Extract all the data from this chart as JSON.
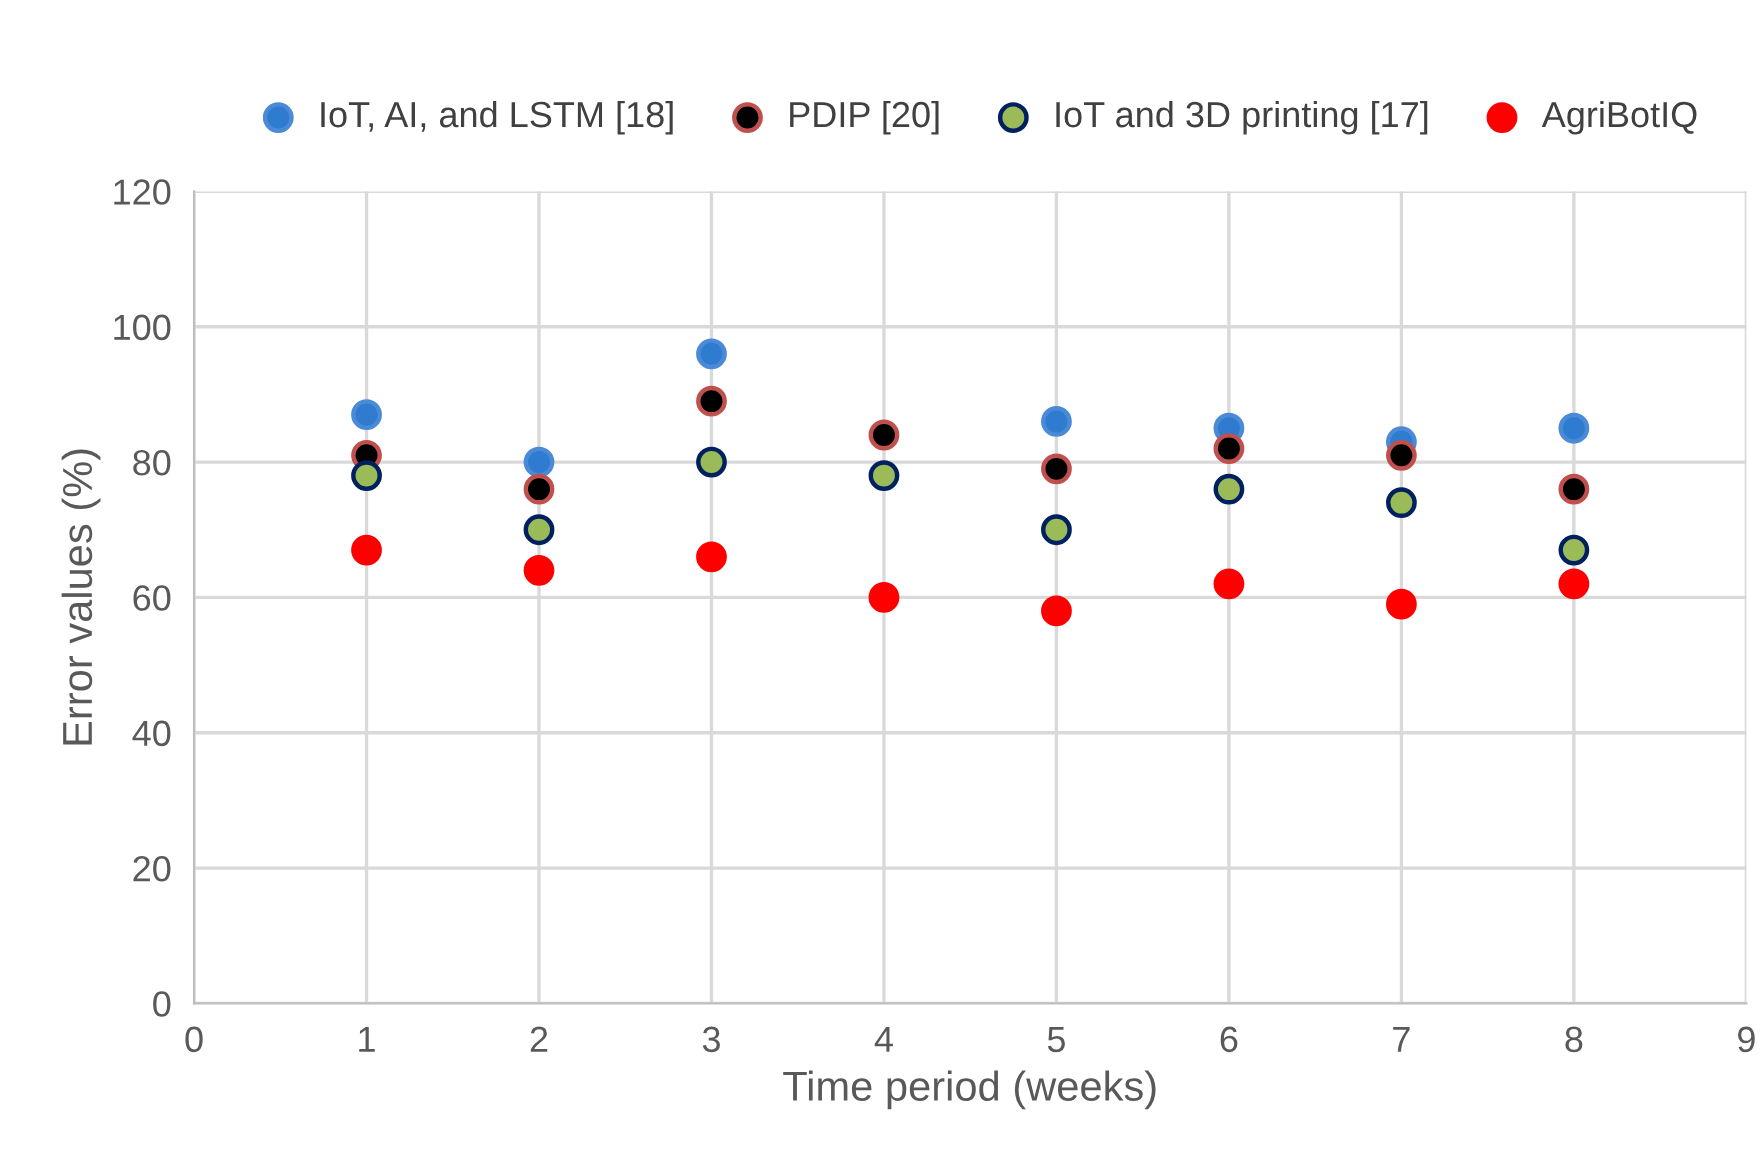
{
  "chart_data": {
    "type": "scatter",
    "xlabel": "Time period (weeks)",
    "ylabel": "Error values (%)",
    "x": [
      1,
      2,
      3,
      4,
      5,
      6,
      7,
      8
    ],
    "series": [
      {
        "name": "IoT, AI, and LSTM [18]",
        "color": "#2f7bd0",
        "values": [
          87,
          80,
          96,
          null,
          86,
          85,
          83,
          85
        ]
      },
      {
        "name": "PDIP [20]",
        "color": "#000000",
        "values": [
          81,
          76,
          89,
          84,
          79,
          82,
          81,
          76
        ]
      },
      {
        "name": "IoT and 3D printing [17]",
        "color": "#9bbb59",
        "values": [
          78,
          70,
          80,
          78,
          70,
          76,
          74,
          67
        ]
      },
      {
        "name": "AgriBotIQ",
        "color": "#ff0000",
        "values": [
          67,
          64,
          66,
          60,
          58,
          62,
          59,
          62
        ]
      }
    ],
    "xlim": [
      0,
      9
    ],
    "xticks": [
      0,
      1,
      2,
      3,
      4,
      5,
      6,
      7,
      8,
      9
    ],
    "ylim": [
      0,
      120
    ],
    "yticks": [
      0,
      20,
      40,
      60,
      80,
      100,
      120
    ],
    "grid": true,
    "legend": "top",
    "marker": "circle"
  }
}
